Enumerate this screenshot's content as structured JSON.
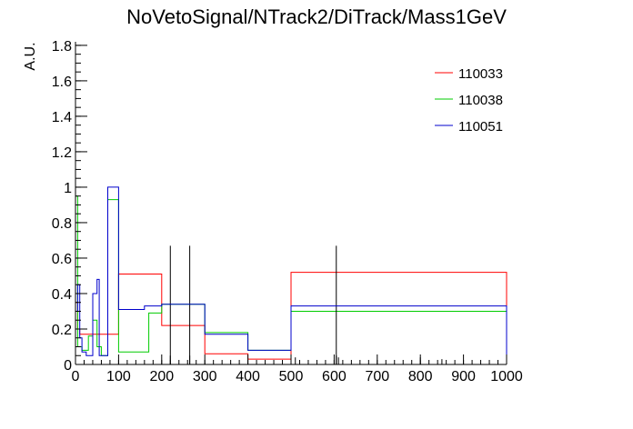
{
  "chart_data": {
    "type": "line",
    "title": "NoVetoSignal/NTrack2/DiTrack/Mass1GeV",
    "xlabel": "",
    "ylabel": "A.U.",
    "xlim": [
      0,
      1000
    ],
    "ylim": [
      0,
      1.82
    ],
    "x_ticks": [
      0,
      100,
      200,
      300,
      400,
      500,
      600,
      700,
      800,
      900,
      1000
    ],
    "y_ticks": [
      0,
      0.2,
      0.4,
      0.6,
      0.8,
      1,
      1.2,
      1.4,
      1.6,
      1.8
    ],
    "x_tick_labels": [
      "0",
      "100",
      "200",
      "300",
      "400",
      "500",
      "600",
      "700",
      "800",
      "900",
      "1000"
    ],
    "y_tick_labels": [
      "0",
      "0.2",
      "0.4",
      "0.6",
      "0.8",
      "1",
      "1.2",
      "1.4",
      "1.6",
      "1.8"
    ],
    "legend_position": "top-right",
    "series": [
      {
        "name": "110033",
        "color": "#ff0000",
        "bins": [
          [
            0,
            5,
            0.35
          ],
          [
            5,
            10,
            0.2
          ],
          [
            10,
            20,
            0.17
          ],
          [
            20,
            100,
            0.17
          ],
          [
            100,
            200,
            0.51
          ],
          [
            200,
            300,
            0.22
          ],
          [
            300,
            400,
            0.06
          ],
          [
            400,
            500,
            0.03
          ],
          [
            500,
            1000,
            0.52
          ]
        ],
        "errors": [
          [
            220,
            0.05
          ],
          [
            265,
            0.05
          ],
          [
            605,
            0.05
          ],
          [
            800,
            0.04
          ]
        ]
      },
      {
        "name": "110038",
        "color": "#00cc00",
        "bins": [
          [
            0,
            5,
            0.95
          ],
          [
            5,
            15,
            0.1
          ],
          [
            15,
            30,
            0.08
          ],
          [
            30,
            40,
            0.16
          ],
          [
            40,
            50,
            0.25
          ],
          [
            50,
            60,
            0.1
          ],
          [
            60,
            75,
            0.05
          ],
          [
            75,
            100,
            0.93
          ],
          [
            100,
            170,
            0.07
          ],
          [
            170,
            200,
            0.29
          ],
          [
            200,
            300,
            0.34
          ],
          [
            300,
            400,
            0.18
          ],
          [
            400,
            500,
            0.08
          ],
          [
            500,
            1000,
            0.3
          ]
        ],
        "errors": [
          [
            220,
            0.67
          ],
          [
            265,
            0.67
          ],
          [
            605,
            0.67
          ],
          [
            510,
            0.04
          ]
        ]
      },
      {
        "name": "110051",
        "color": "#0000cc",
        "bins": [
          [
            0,
            5,
            0.3
          ],
          [
            5,
            10,
            0.45
          ],
          [
            10,
            15,
            0.15
          ],
          [
            15,
            25,
            0.07
          ],
          [
            25,
            40,
            0.05
          ],
          [
            40,
            50,
            0.4
          ],
          [
            50,
            55,
            0.48
          ],
          [
            55,
            60,
            0.05
          ],
          [
            60,
            75,
            0.05
          ],
          [
            75,
            100,
            1.0
          ],
          [
            100,
            160,
            0.31
          ],
          [
            160,
            200,
            0.33
          ],
          [
            200,
            300,
            0.34
          ],
          [
            300,
            400,
            0.17
          ],
          [
            400,
            500,
            0.08
          ],
          [
            500,
            1000,
            0.33
          ]
        ],
        "errors": [
          [
            0,
            0.6
          ],
          [
            610,
            0.04
          ],
          [
            850,
            0.03
          ]
        ]
      }
    ]
  }
}
